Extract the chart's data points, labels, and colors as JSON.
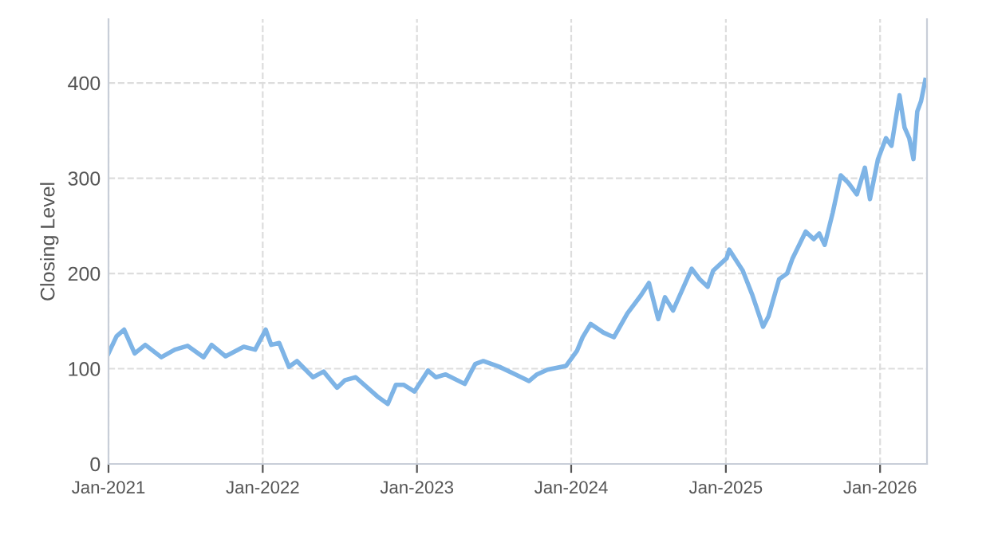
{
  "chart_data": {
    "type": "line",
    "ylabel": "Closing Level",
    "xlim": [
      "2021-01-01",
      "2026-04-22"
    ],
    "ylim": [
      0,
      467
    ],
    "xticks": [
      {
        "value": "2021-01-01",
        "label": "Jan-2021"
      },
      {
        "value": "2022-01-01",
        "label": "Jan-2022"
      },
      {
        "value": "2023-01-01",
        "label": "Jan-2023"
      },
      {
        "value": "2024-01-01",
        "label": "Jan-2024"
      },
      {
        "value": "2025-01-01",
        "label": "Jan-2025"
      },
      {
        "value": "2026-01-01",
        "label": "Jan-2026"
      }
    ],
    "yticks": [
      0,
      100,
      200,
      300,
      400
    ],
    "grid": true,
    "legend": false,
    "marker": "none",
    "line_style": "solid",
    "x": [
      "2021-01-01",
      "2021-01-20",
      "2021-02-07",
      "2021-03-04",
      "2021-03-29",
      "2021-05-06",
      "2021-06-07",
      "2021-07-07",
      "2021-08-14",
      "2021-09-02",
      "2021-10-05",
      "2021-11-17",
      "2021-12-14",
      "2022-01-08",
      "2022-01-21",
      "2022-02-09",
      "2022-03-04",
      "2022-03-23",
      "2022-04-30",
      "2022-05-25",
      "2022-06-26",
      "2022-07-15",
      "2022-08-09",
      "2022-09-29",
      "2022-10-24",
      "2022-11-12",
      "2022-12-01",
      "2022-12-26",
      "2023-01-27",
      "2023-02-15",
      "2023-03-10",
      "2023-04-24",
      "2023-05-19",
      "2023-06-07",
      "2023-07-15",
      "2023-08-22",
      "2023-09-23",
      "2023-10-12",
      "2023-11-06",
      "2023-12-20",
      "2024-01-15",
      "2024-01-28",
      "2024-02-16",
      "2024-03-17",
      "2024-04-11",
      "2024-05-13",
      "2024-06-14",
      "2024-07-03",
      "2024-07-25",
      "2024-08-10",
      "2024-08-29",
      "2024-10-12",
      "2024-10-31",
      "2024-11-19",
      "2024-12-02",
      "2025-01-03",
      "2025-01-09",
      "2025-02-10",
      "2025-03-05",
      "2025-03-30",
      "2025-04-12",
      "2025-05-07",
      "2025-05-26",
      "2025-06-08",
      "2025-07-09",
      "2025-07-28",
      "2025-08-10",
      "2025-08-23",
      "2025-09-11",
      "2025-09-30",
      "2025-10-18",
      "2025-11-07",
      "2025-11-26",
      "2025-12-08",
      "2025-12-27",
      "2026-01-15",
      "2026-01-28",
      "2026-02-16",
      "2026-02-28",
      "2026-03-11",
      "2026-03-21",
      "2026-03-30",
      "2026-04-08",
      "2026-04-18"
    ],
    "series": [
      {
        "color": "#7eb4e6",
        "values": [
          116,
          134,
          141,
          116,
          125,
          112,
          120,
          124,
          112,
          125,
          113,
          123,
          120,
          141,
          125,
          127,
          102,
          108,
          91,
          97,
          80,
          88,
          91,
          71,
          63,
          83,
          83,
          76,
          98,
          91,
          94,
          84,
          105,
          108,
          102,
          94,
          87,
          94,
          99,
          103,
          119,
          133,
          147,
          138,
          133,
          158,
          177,
          190,
          152,
          175,
          161,
          205,
          194,
          186,
          203,
          216,
          225,
          203,
          177,
          144,
          155,
          194,
          200,
          216,
          244,
          236,
          242,
          230,
          264,
          303,
          295,
          283,
          311,
          278,
          320,
          342,
          334,
          387,
          353,
          342,
          320,
          370,
          381,
          403
        ]
      }
    ]
  }
}
